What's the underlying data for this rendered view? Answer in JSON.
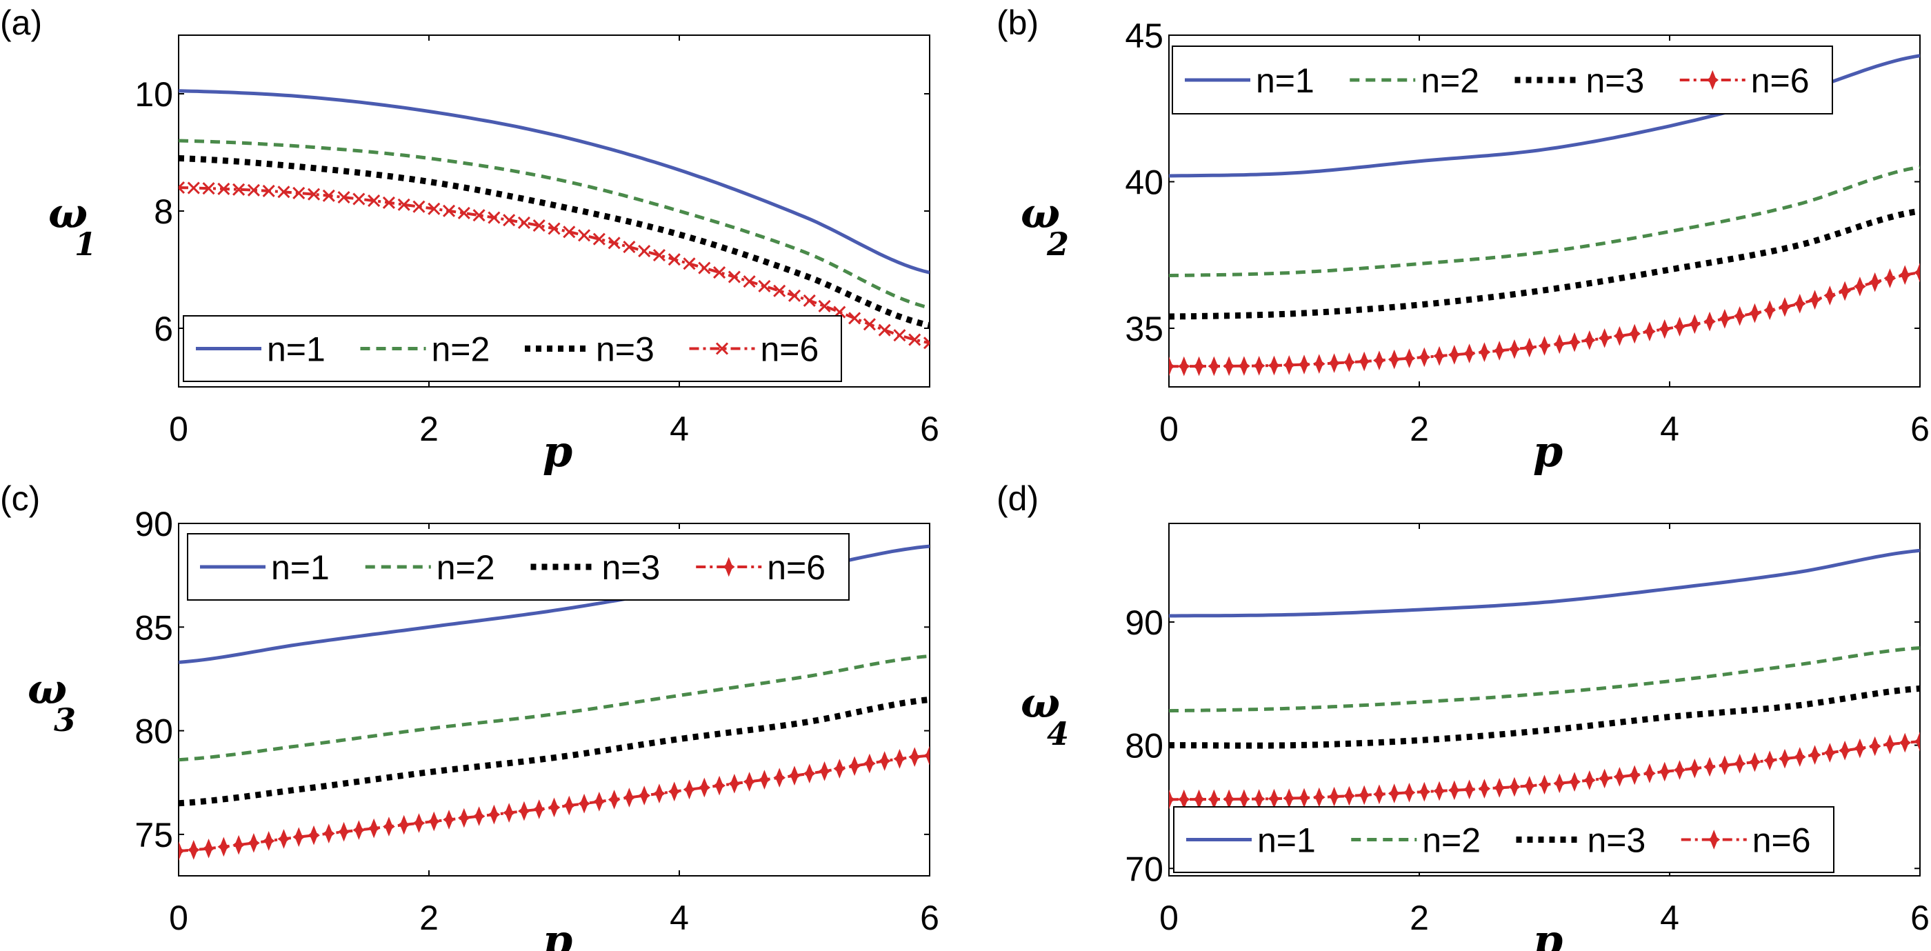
{
  "colors": {
    "n1": "#4a5bb0",
    "n2": "#4a8a4a",
    "n3": "#000000",
    "n6": "#d62728"
  },
  "chart_data": [
    {
      "type": "line",
      "panel_label": "(a)",
      "xlabel": "p",
      "ylabel": "ω",
      "ylabel_sub": "1",
      "xlim": [
        0,
        6
      ],
      "ylim": [
        5,
        11
      ],
      "xticks": [
        0,
        2,
        4,
        6
      ],
      "yticks": [
        6,
        8,
        10
      ],
      "grid": false,
      "legend": "bottom",
      "marker_n6": "x",
      "x": [
        0,
        1,
        2,
        3,
        4,
        5,
        6
      ],
      "series": [
        {
          "name": "n=1",
          "style": "solid",
          "values": [
            10.05,
            9.95,
            9.7,
            9.3,
            8.7,
            7.9,
            6.95
          ]
        },
        {
          "name": "n=2",
          "style": "dashed",
          "values": [
            9.2,
            9.1,
            8.9,
            8.55,
            8.0,
            7.3,
            6.35
          ]
        },
        {
          "name": "n=3",
          "style": "dotted",
          "values": [
            8.9,
            8.75,
            8.5,
            8.1,
            7.6,
            6.9,
            6.05
          ]
        },
        {
          "name": "n=6",
          "style": "dashdot",
          "values": [
            8.4,
            8.3,
            8.05,
            7.7,
            7.15,
            6.5,
            5.75
          ]
        }
      ]
    },
    {
      "type": "line",
      "panel_label": "(b)",
      "xlabel": "p",
      "ylabel": "ω",
      "ylabel_sub": "2",
      "xlim": [
        0,
        6
      ],
      "ylim": [
        33,
        45
      ],
      "xticks": [
        0,
        2,
        4,
        6
      ],
      "yticks": [
        35,
        40,
        45
      ],
      "grid": false,
      "legend": "top",
      "marker_n6": "star",
      "x": [
        0,
        1,
        2,
        3,
        4,
        5,
        6
      ],
      "series": [
        {
          "name": "n=1",
          "style": "solid",
          "values": [
            40.2,
            40.3,
            40.7,
            41.1,
            41.9,
            43.0,
            44.3
          ]
        },
        {
          "name": "n=2",
          "style": "dashed",
          "values": [
            36.8,
            36.9,
            37.2,
            37.6,
            38.3,
            39.2,
            40.5
          ]
        },
        {
          "name": "n=3",
          "style": "dotted",
          "values": [
            35.4,
            35.5,
            35.8,
            36.3,
            37.0,
            37.8,
            39.0
          ]
        },
        {
          "name": "n=6",
          "style": "dashdot",
          "values": [
            33.7,
            33.75,
            34.0,
            34.4,
            35.0,
            35.8,
            36.9
          ]
        }
      ]
    },
    {
      "type": "line",
      "panel_label": "(c)",
      "xlabel": "p",
      "ylabel": "ω",
      "ylabel_sub": "3",
      "xlim": [
        0,
        6
      ],
      "ylim": [
        73,
        90
      ],
      "xticks": [
        0,
        2,
        4,
        6
      ],
      "yticks": [
        75,
        80,
        85,
        90
      ],
      "grid": false,
      "legend": "top",
      "marker_n6": "star",
      "x": [
        0,
        1,
        2,
        3,
        4,
        5,
        6
      ],
      "series": [
        {
          "name": "n=1",
          "style": "solid",
          "values": [
            83.3,
            84.2,
            85.0,
            85.8,
            86.8,
            87.8,
            88.9
          ]
        },
        {
          "name": "n=2",
          "style": "dashed",
          "values": [
            78.6,
            79.3,
            80.1,
            80.8,
            81.7,
            82.6,
            83.6
          ]
        },
        {
          "name": "n=3",
          "style": "dotted",
          "values": [
            76.5,
            77.2,
            78.0,
            78.7,
            79.6,
            80.4,
            81.5
          ]
        },
        {
          "name": "n=6",
          "style": "dashdot",
          "values": [
            74.2,
            74.9,
            75.6,
            76.3,
            77.1,
            77.9,
            78.8
          ]
        }
      ]
    },
    {
      "type": "line",
      "panel_label": "(d)",
      "xlabel": "p",
      "ylabel": "ω",
      "ylabel_sub": "4",
      "xlim": [
        0,
        6
      ],
      "ylim": [
        69.4,
        98
      ],
      "xticks": [
        0,
        2,
        4,
        6
      ],
      "yticks": [
        70,
        80,
        90
      ],
      "grid": false,
      "legend": "bottom",
      "marker_n6": "star",
      "x": [
        0,
        1,
        2,
        3,
        4,
        5,
        6
      ],
      "series": [
        {
          "name": "n=1",
          "style": "solid",
          "values": [
            90.5,
            90.6,
            91.0,
            91.6,
            92.7,
            94.0,
            95.8
          ]
        },
        {
          "name": "n=2",
          "style": "dashed",
          "values": [
            82.8,
            83.0,
            83.5,
            84.2,
            85.2,
            86.5,
            87.9
          ]
        },
        {
          "name": "n=3",
          "style": "dotted",
          "values": [
            80.0,
            80.0,
            80.4,
            81.2,
            82.3,
            83.2,
            84.6
          ]
        },
        {
          "name": "n=6",
          "style": "dashdot",
          "values": [
            75.6,
            75.7,
            76.2,
            76.8,
            77.9,
            79.0,
            80.3
          ]
        }
      ]
    }
  ]
}
